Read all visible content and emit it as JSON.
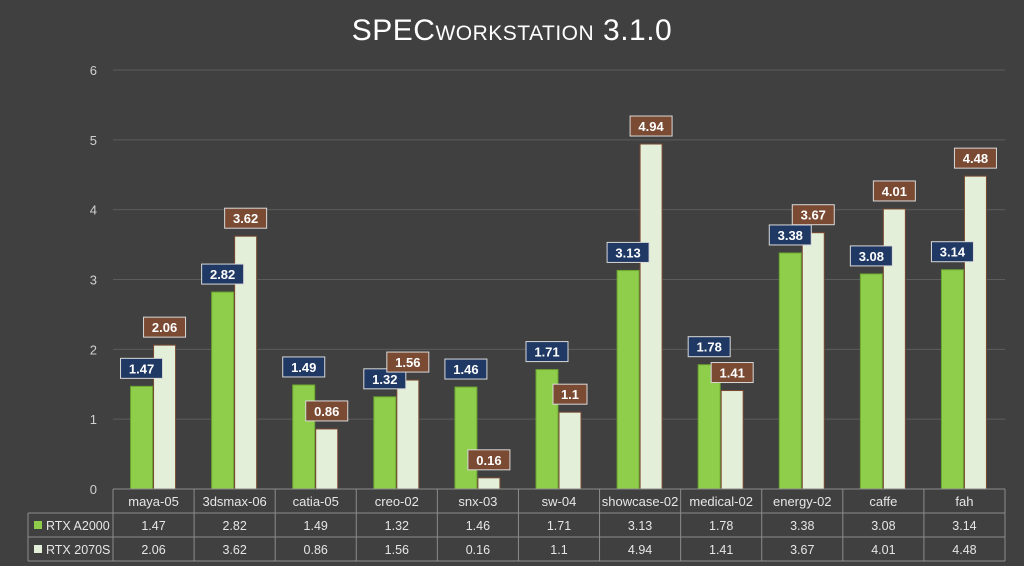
{
  "chart_data": {
    "type": "bar",
    "title": "SPECworkstation 3.1.0",
    "categories": [
      "maya-05",
      "3dsmax-06",
      "catia-05",
      "creo-02",
      "snx-03",
      "sw-04",
      "showcase-02",
      "medical-02",
      "energy-02",
      "caffe",
      "fah"
    ],
    "series": [
      {
        "name": "RTX A2000",
        "color": "#8fce4a",
        "label_bg": "#1f3864",
        "values": [
          1.47,
          2.82,
          1.49,
          1.32,
          1.46,
          1.71,
          3.13,
          1.78,
          3.38,
          3.08,
          3.14
        ]
      },
      {
        "name": "RTX 2070S",
        "color": "#e4efd9",
        "label_bg": "#7a4a32",
        "values": [
          2.06,
          3.62,
          0.86,
          1.56,
          0.16,
          1.1,
          4.94,
          1.41,
          3.67,
          4.01,
          4.48
        ]
      }
    ],
    "yticks": [
      0,
      1,
      2,
      3,
      4,
      5,
      6
    ],
    "ylim": [
      0,
      6
    ],
    "grid": true,
    "legend": "data-table"
  }
}
